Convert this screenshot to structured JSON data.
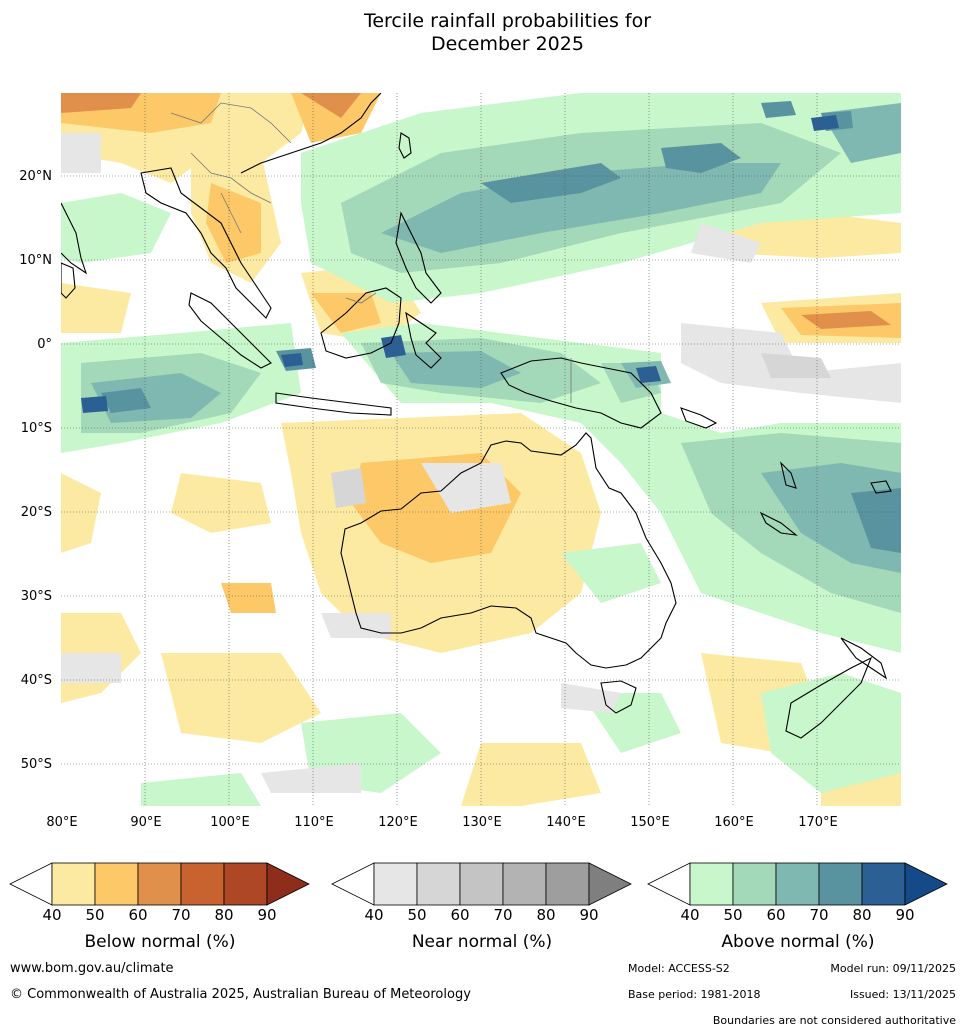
{
  "title": {
    "line1": "Tercile rainfall probabilities for",
    "line2": "December 2025"
  },
  "map": {
    "lat_labels": [
      "20°N",
      "10°N",
      "0°",
      "10°S",
      "20°S",
      "30°S",
      "40°S",
      "50°S"
    ],
    "lon_labels": [
      "80°E",
      "90°E",
      "100°E",
      "110°E",
      "120°E",
      "130°E",
      "140°E",
      "150°E",
      "160°E",
      "170°E"
    ],
    "colors": {
      "ocean_white": "#ffffff",
      "below_40": "#fdeaa2",
      "below_50": "#fcc868",
      "below_60": "#e0904a",
      "below_70": "#c8622f",
      "below_80": "#ad4725",
      "below_90": "#8f2d1c",
      "near_40": "#e6e6e6",
      "near_50": "#d6d6d6",
      "near_60": "#c4c4c4",
      "near_70": "#b3b3b3",
      "near_80": "#9e9e9e",
      "near_90": "#7f7f7f",
      "above_40": "#c7f7cb",
      "above_50": "#a3d8b8",
      "above_60": "#7fb8b0",
      "above_70": "#5a93a0",
      "above_80": "#2c5f94",
      "above_90": "#134a87"
    }
  },
  "colorbars": {
    "below": {
      "title": "Below normal (%)",
      "ticks": [
        "40",
        "50",
        "60",
        "70",
        "80",
        "90"
      ]
    },
    "near": {
      "title": "Near normal (%)",
      "ticks": [
        "40",
        "50",
        "60",
        "70",
        "80",
        "90"
      ]
    },
    "above": {
      "title": "Above normal (%)",
      "ticks": [
        "40",
        "50",
        "60",
        "70",
        "80",
        "90"
      ]
    }
  },
  "footer": {
    "website": "www.bom.gov.au/climate",
    "copyright": "© Commonwealth of Australia 2025, Australian Bureau of Meteorology",
    "model": "Model: ACCESS-S2",
    "model_run": "Model run: 09/11/2025",
    "base_period": "Base period: 1981-2018",
    "issued": "Issued: 13/11/2025",
    "disclaimer": "Boundaries are not considered authoritative"
  }
}
